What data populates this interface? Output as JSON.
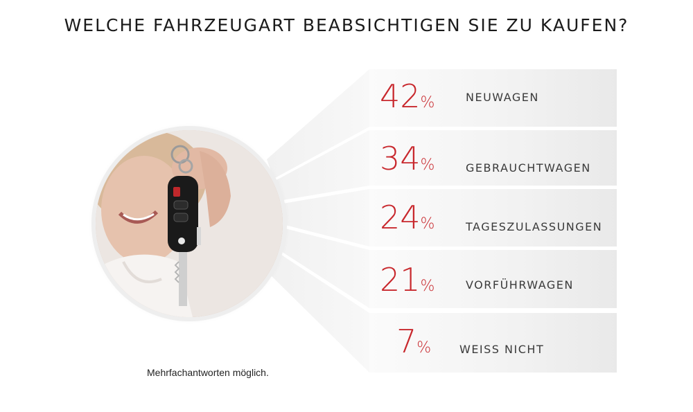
{
  "title": "WELCHE FAHRZEUGART BEABSICHTIGEN SIE ZU KAUFEN?",
  "footnote": "Mehrfachantworten möglich.",
  "colors": {
    "accent": "#c8282d",
    "text": "#3a3a3a"
  },
  "chart_data": {
    "type": "bar",
    "title": "WELCHE FAHRZEUGART BEABSICHTIGEN SIE ZU KAUFEN?",
    "categories": [
      "NEUWAGEN",
      "GEBRAUCHTWAGEN",
      "TAGESZULASSUNGEN",
      "VORFÜHRWAGEN",
      "WEISS NICHT"
    ],
    "values": [
      42,
      34,
      24,
      21,
      7
    ],
    "unit": "%",
    "items": [
      {
        "value": "42",
        "unit": "%",
        "label": "NEUWAGEN"
      },
      {
        "value": "34",
        "unit": "%",
        "label": "GEBRAUCHTWAGEN"
      },
      {
        "value": "24",
        "unit": "%",
        "label": "TAGESZULASSUNGEN"
      },
      {
        "value": "21",
        "unit": "%",
        "label": "VORFÜHRWAGEN"
      },
      {
        "value": "7",
        "unit": "%",
        "label": "WEISS NICHT"
      }
    ]
  },
  "image": {
    "icon": "person-holding-car-key-photo"
  }
}
